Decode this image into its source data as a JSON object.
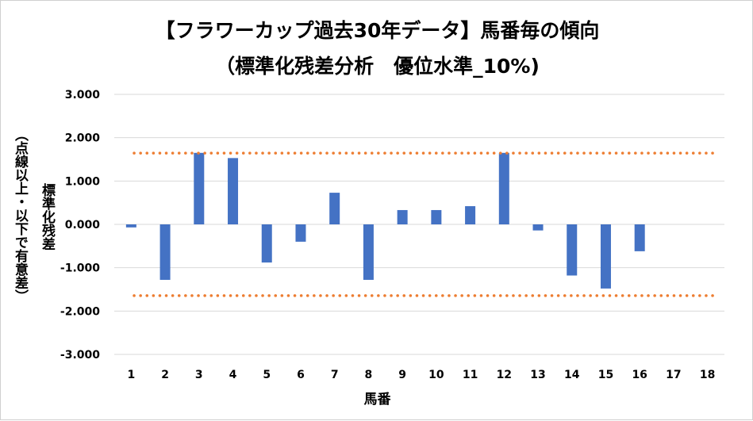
{
  "chart_data": {
    "type": "bar",
    "title_line1": "【フラワーカップ過去30年データ】馬番毎の傾向",
    "title_line2": "（標準化残差分析　優位水準_10%)",
    "xlabel": "馬番",
    "ylabel": "標準化残差",
    "ylabel_note": "（点線以上・以下で有意差）",
    "categories": [
      "1",
      "2",
      "3",
      "4",
      "5",
      "6",
      "7",
      "8",
      "9",
      "10",
      "11",
      "12",
      "13",
      "14",
      "15",
      "16",
      "17",
      "18"
    ],
    "values": [
      -0.07,
      -1.28,
      1.65,
      1.53,
      -0.88,
      -0.4,
      0.73,
      -1.28,
      0.33,
      0.33,
      0.42,
      1.65,
      -0.14,
      -1.18,
      -1.48,
      -0.62,
      null,
      null
    ],
    "ylim": [
      -3.0,
      3.0
    ],
    "yticks": [
      "3.000",
      "2.000",
      "1.000",
      "0.000",
      "-1.000",
      "-2.000",
      "-3.000"
    ],
    "ytick_values": [
      3,
      2,
      1,
      0,
      -1,
      -2,
      -3
    ],
    "threshold_upper": 1.645,
    "threshold_lower": -1.645,
    "grid": "horizontal",
    "bar_color": "#4472c4",
    "threshold_color": "#ed7d31",
    "grid_color": "#d9d9d9"
  }
}
